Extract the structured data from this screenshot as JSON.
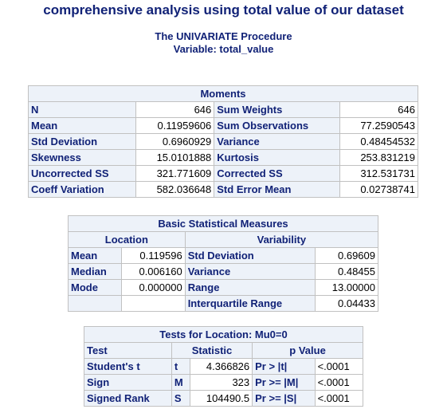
{
  "page": {
    "title": "comprehensive analysis using total value of our dataset",
    "procedure": "The UNIVARIATE Procedure",
    "variable": "Variable:  total_value"
  },
  "moments": {
    "caption": "Moments",
    "rows": [
      {
        "l1": "N",
        "v1": "646",
        "l2": "Sum Weights",
        "v2": "646"
      },
      {
        "l1": "Mean",
        "v1": "0.11959606",
        "l2": "Sum Observations",
        "v2": "77.2590543"
      },
      {
        "l1": "Std Deviation",
        "v1": "0.6960929",
        "l2": "Variance",
        "v2": "0.48454532"
      },
      {
        "l1": "Skewness",
        "v1": "15.0101888",
        "l2": "Kurtosis",
        "v2": "253.831219"
      },
      {
        "l1": "Uncorrected SS",
        "v1": "321.771609",
        "l2": "Corrected SS",
        "v2": "312.531731"
      },
      {
        "l1": "Coeff Variation",
        "v1": "582.036648",
        "l2": "Std Error Mean",
        "v2": "0.02738741"
      }
    ]
  },
  "basic": {
    "caption": "Basic Statistical Measures",
    "location_header": "Location",
    "variability_header": "Variability",
    "rows": [
      {
        "l1": "Mean",
        "v1": "0.119596",
        "l2": "Std Deviation",
        "v2": "0.69609"
      },
      {
        "l1": "Median",
        "v1": "0.006160",
        "l2": "Variance",
        "v2": "0.48455"
      },
      {
        "l1": "Mode",
        "v1": "0.000000",
        "l2": "Range",
        "v2": "13.00000"
      },
      {
        "l1": "",
        "v1": "",
        "l2": "Interquartile Range",
        "v2": "0.04433"
      }
    ]
  },
  "tests": {
    "caption": "Tests for Location: Mu0=0",
    "headers": {
      "test": "Test",
      "statistic": "Statistic",
      "pvalue": "p Value"
    },
    "rows": [
      {
        "test": "Student's t",
        "sym": "t",
        "stat": "4.366826",
        "plabel": "Pr > |t|",
        "pval": "<.0001"
      },
      {
        "test": "Sign",
        "sym": "M",
        "stat": "323",
        "plabel": "Pr >= |M|",
        "pval": "<.0001"
      },
      {
        "test": "Signed Rank",
        "sym": "S",
        "stat": "104490.5",
        "plabel": "Pr >= |S|",
        "pval": "<.0001"
      }
    ]
  }
}
